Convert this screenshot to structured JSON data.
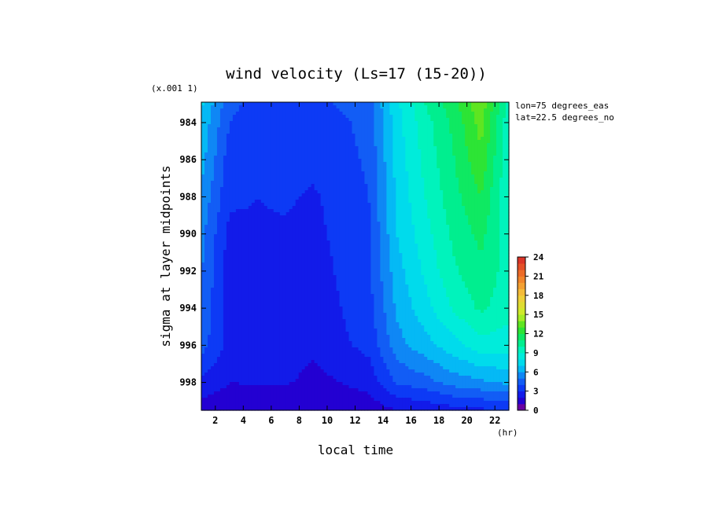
{
  "chart_data": {
    "type": "heatmap",
    "title": "wind velocity (Ls=17 (15-20))",
    "xlabel": "local time",
    "x_unit": "(hr)",
    "ylabel": "sigma at layer midpoints",
    "y_scale_note": "(x.001 1)",
    "annotations": [
      "lon=75 degrees_eas",
      "lat=22.5 degrees_no"
    ],
    "x_ticks": [
      "2",
      "4",
      "6",
      "8",
      "10",
      "12",
      "14",
      "16",
      "18",
      "20",
      "22"
    ],
    "y_ticks": [
      "984",
      "986",
      "988",
      "990",
      "992",
      "994",
      "996",
      "998"
    ],
    "xlim": [
      1,
      23
    ],
    "ylim": [
      999.5,
      982.9
    ],
    "x": [
      1,
      3,
      5,
      7,
      9,
      11,
      13,
      15,
      17,
      19,
      21,
      23
    ],
    "y": [
      982.9,
      984,
      986,
      988,
      990,
      992,
      994,
      996,
      998,
      999.5
    ],
    "values": [
      [
        7.2,
        4.3,
        3.7,
        3.8,
        3.6,
        4.2,
        4.6,
        7.8,
        10.0,
        11.6,
        13.8,
        9.5
      ],
      [
        6.8,
        4.0,
        3.5,
        3.6,
        3.4,
        3.8,
        4.4,
        7.6,
        9.6,
        11.2,
        13.4,
        9.2
      ],
      [
        6.4,
        3.5,
        3.3,
        3.4,
        3.2,
        3.6,
        4.2,
        7.4,
        9.3,
        10.9,
        12.8,
        9.1
      ],
      [
        5.8,
        3.2,
        3.0,
        3.1,
        2.9,
        3.3,
        4.0,
        7.2,
        9.0,
        10.6,
        12.0,
        9.0
      ],
      [
        5.3,
        2.7,
        2.9,
        2.9,
        2.8,
        3.2,
        3.9,
        7.0,
        8.6,
        10.2,
        11.3,
        9.4
      ],
      [
        5.1,
        2.4,
        2.8,
        2.8,
        2.7,
        3.1,
        3.8,
        6.6,
        8.2,
        9.8,
        10.8,
        9.5
      ],
      [
        4.9,
        2.5,
        2.7,
        2.8,
        2.6,
        3.0,
        3.6,
        6.2,
        7.6,
        9.1,
        10.2,
        9.4
      ],
      [
        4.4,
        2.7,
        2.4,
        2.6,
        2.2,
        2.8,
        3.3,
        5.6,
        6.6,
        7.6,
        8.6,
        8.4
      ],
      [
        2.8,
        2.0,
        2.1,
        2.1,
        1.7,
        2.0,
        2.4,
        4.1,
        4.6,
        5.4,
        5.8,
        6.2
      ],
      [
        1.4,
        1.3,
        1.3,
        1.3,
        1.1,
        1.2,
        1.4,
        2.0,
        2.2,
        2.6,
        2.8,
        3.0
      ]
    ],
    "colorbar": {
      "ticks": [
        "0",
        "3",
        "6",
        "9",
        "12",
        "15",
        "18",
        "21",
        "24"
      ],
      "range": [
        0,
        24
      ],
      "step": 1
    }
  }
}
